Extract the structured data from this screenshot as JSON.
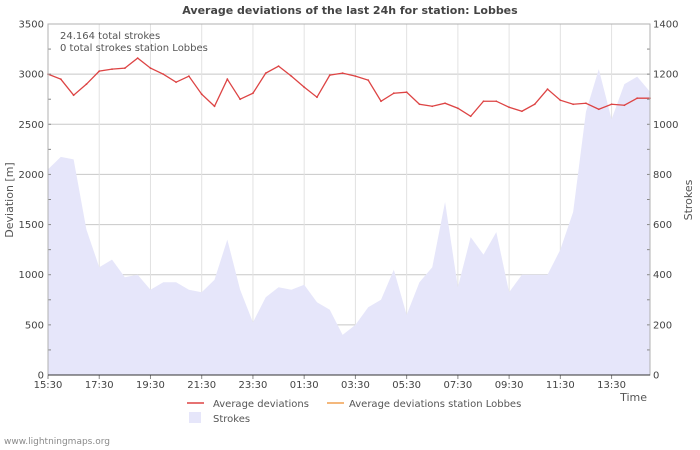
{
  "chart_data": {
    "type": "line",
    "title": "Average deviations of the last 24h for station: Lobbes",
    "info_lines": [
      "24.164 total strokes",
      "0 total strokes station Lobbes"
    ],
    "xlabel": "Time",
    "ylabel_left": "Deviation  [m]",
    "ylabel_right": "Strokes",
    "ylim_left": [
      0,
      3500
    ],
    "ylim_right": [
      0,
      1400
    ],
    "yticks_left": [
      0,
      500,
      1000,
      1500,
      2000,
      2500,
      3000,
      3500
    ],
    "yticks_right": [
      0,
      200,
      400,
      600,
      800,
      1000,
      1200,
      1400
    ],
    "xticks": [
      "15:30",
      "17:30",
      "19:30",
      "21:30",
      "23:30",
      "01:30",
      "03:30",
      "05:30",
      "07:30",
      "09:30",
      "11:30",
      "13:30"
    ],
    "grid": true,
    "x_step_minutes": 30,
    "series": [
      {
        "name": "Average deviations",
        "axis": "left",
        "color": "#dd4444",
        "values": [
          3000,
          2950,
          2790,
          2900,
          3030,
          3050,
          3060,
          3160,
          3060,
          3000,
          2920,
          2980,
          2800,
          2680,
          2950,
          2750,
          2810,
          3010,
          3080,
          2980,
          2870,
          2770,
          2990,
          3010,
          2980,
          2940,
          2730,
          2810,
          2820,
          2700,
          2680,
          2710,
          2660,
          2580,
          2730,
          2730,
          2670,
          2630,
          2700,
          2850,
          2740,
          2700,
          2710,
          2650,
          2700,
          2690,
          2760,
          2760
        ]
      },
      {
        "name": "Average deviations station Lobbes",
        "axis": "left",
        "color": "#f0a050",
        "values": []
      },
      {
        "name": "Strokes",
        "axis": "right",
        "type": "area",
        "color": "#e6e6fa",
        "values": [
          820,
          870,
          860,
          580,
          430,
          460,
          390,
          400,
          340,
          370,
          370,
          340,
          330,
          380,
          540,
          340,
          210,
          310,
          350,
          340,
          360,
          290,
          260,
          160,
          200,
          270,
          300,
          420,
          240,
          370,
          430,
          690,
          350,
          550,
          480,
          570,
          330,
          400,
          400,
          400,
          500,
          650,
          1050,
          1220,
          1020,
          1160,
          1190,
          1130
        ]
      }
    ]
  },
  "watermark": "www.lightningmaps.org"
}
